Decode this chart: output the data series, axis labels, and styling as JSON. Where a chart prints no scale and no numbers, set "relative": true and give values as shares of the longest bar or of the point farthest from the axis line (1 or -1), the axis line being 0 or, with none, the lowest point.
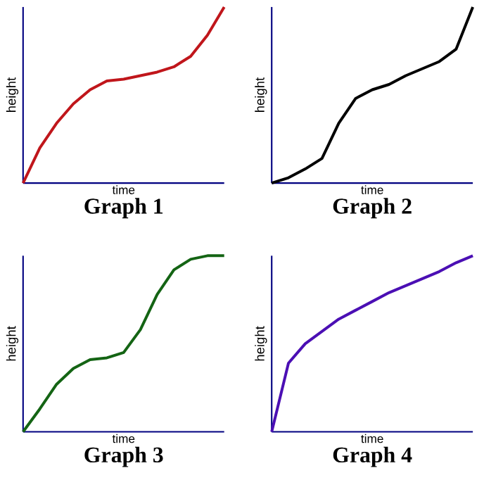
{
  "chart_data": [
    {
      "type": "line",
      "title": "Graph 1",
      "xlabel": "time",
      "ylabel": "height",
      "relative": true,
      "categories": [
        null,
        null,
        null,
        null,
        null,
        null,
        null,
        null,
        null,
        null,
        null,
        null,
        null
      ],
      "series": [
        {
          "color": "#c0161b",
          "values": [
            0,
            0.2,
            0.34,
            0.45,
            0.53,
            0.58,
            0.59,
            0.61,
            0.63,
            0.66,
            0.72,
            0.84,
            1
          ]
        }
      ]
    },
    {
      "type": "line",
      "title": "Graph 2",
      "xlabel": "time",
      "ylabel": "height",
      "relative": true,
      "categories": [
        null,
        null,
        null,
        null,
        null,
        null,
        null,
        null,
        null,
        null,
        null,
        null,
        null
      ],
      "series": [
        {
          "color": "#000000",
          "values": [
            0,
            0.03,
            0.08,
            0.14,
            0.34,
            0.48,
            0.53,
            0.56,
            0.61,
            0.65,
            0.69,
            0.76,
            1
          ]
        }
      ]
    },
    {
      "type": "line",
      "title": "Graph 3",
      "xlabel": "time",
      "ylabel": "height",
      "relative": true,
      "categories": [
        null,
        null,
        null,
        null,
        null,
        null,
        null,
        null,
        null,
        null,
        null,
        null,
        null
      ],
      "series": [
        {
          "color": "#146414",
          "values": [
            0,
            0.13,
            0.27,
            0.36,
            0.41,
            0.42,
            0.45,
            0.58,
            0.78,
            0.92,
            0.98,
            1,
            1
          ]
        }
      ]
    },
    {
      "type": "line",
      "title": "Graph 4",
      "xlabel": "time",
      "ylabel": "height",
      "relative": true,
      "categories": [
        null,
        null,
        null,
        null,
        null,
        null,
        null,
        null,
        null,
        null,
        null,
        null,
        null
      ],
      "series": [
        {
          "color": "#4b0fb4",
          "values": [
            0,
            0.39,
            0.5,
            0.57,
            0.64,
            0.69,
            0.74,
            0.79,
            0.83,
            0.87,
            0.91,
            0.96,
            1
          ]
        }
      ]
    }
  ]
}
